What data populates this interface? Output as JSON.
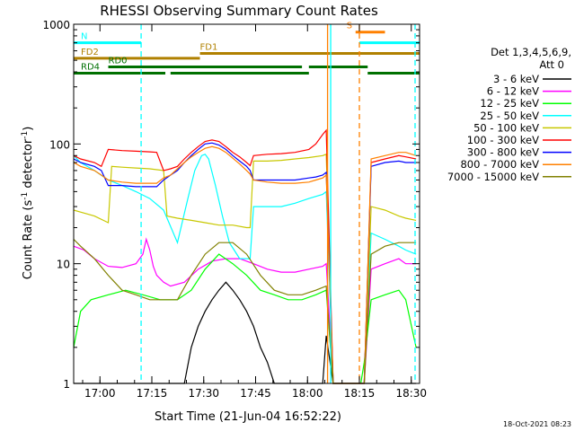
{
  "chart_data": {
    "type": "line",
    "title": "RHESSI Observing Summary Count Rates",
    "xlabel": "Start Time (21-Jun-04 16:52:22)",
    "ylabel_main": "Count Rate (s",
    "ylabel_sup1": "-1",
    "ylabel_mid": " detector",
    "ylabel_sup2": "-1",
    "ylabel_end": ")",
    "x_unit": "minutes since 16:52:22",
    "xlim": [
      0,
      100
    ],
    "ylim": [
      1,
      1000
    ],
    "yscale": "log",
    "x_ticks": [
      {
        "label": "17:00",
        "value": 7.6
      },
      {
        "label": "17:15",
        "value": 22.6
      },
      {
        "label": "17:30",
        "value": 37.6
      },
      {
        "label": "17:45",
        "value": 52.6
      },
      {
        "label": "18:00",
        "value": 67.6
      },
      {
        "label": "18:15",
        "value": 82.6
      },
      {
        "label": "18:30",
        "value": 97.6
      }
    ],
    "y_ticks": [
      {
        "label": "1",
        "value": 1
      },
      {
        "label": "10",
        "value": 10
      },
      {
        "label": "100",
        "value": 100
      },
      {
        "label": "1000",
        "value": 1000
      }
    ],
    "legend": {
      "header1": "Det 1,3,4,5,6,9,",
      "header2": "Att 0",
      "placement": "right"
    },
    "series": [
      {
        "name": "3 - 6 keV",
        "color": "#000000",
        "x": [
          0,
          20,
          25,
          32,
          34,
          36,
          38,
          40,
          42,
          44,
          46,
          48,
          50,
          52,
          54,
          56,
          58,
          60,
          62,
          64,
          66,
          68,
          70,
          72,
          73,
          75,
          79,
          83,
          85,
          87,
          90,
          93,
          96,
          99
        ],
        "y": [
          1,
          1,
          1,
          1,
          2,
          3,
          4,
          5,
          6,
          7,
          6,
          5,
          4,
          3,
          2,
          1.5,
          1,
          1,
          1,
          1,
          1,
          1,
          1,
          1,
          2.5,
          1,
          1,
          1,
          1,
          1,
          1,
          1,
          1,
          1
        ]
      },
      {
        "name": "6 - 12 keV",
        "color": "#ff00ff",
        "x": [
          0,
          3,
          6,
          10,
          14,
          18,
          20,
          21,
          22,
          23,
          24,
          26,
          28,
          32,
          36,
          40,
          44,
          48,
          52,
          56,
          60,
          64,
          68,
          72,
          73,
          75,
          79,
          83,
          84,
          86,
          90,
          94,
          96,
          99
        ],
        "y": [
          14,
          13,
          11,
          9.5,
          9.3,
          10,
          12,
          16,
          13,
          9.5,
          8,
          7,
          6.5,
          7,
          9,
          10.5,
          11,
          11,
          10,
          9,
          8.5,
          8.5,
          9,
          9.5,
          10,
          1,
          1,
          1,
          1,
          9,
          10,
          11,
          10,
          10
        ]
      },
      {
        "name": "12 - 25 keV",
        "color": "#00ff00",
        "x": [
          0,
          2,
          5,
          10,
          15,
          20,
          25,
          30,
          34,
          38,
          42,
          46,
          50,
          54,
          58,
          62,
          66,
          70,
          73,
          75,
          79,
          83,
          84,
          86,
          90,
          94,
          96,
          99
        ],
        "y": [
          2,
          4,
          5,
          5.5,
          6,
          5.5,
          5,
          5,
          6,
          9,
          12,
          10,
          8,
          6,
          5.5,
          5,
          5,
          5.5,
          6,
          1,
          1,
          1,
          1.5,
          5,
          5.5,
          6,
          5,
          2
        ]
      },
      {
        "name": "25 - 50 keV",
        "color": "#00ffff",
        "x": [
          0,
          2,
          6,
          10,
          14,
          18,
          22,
          26,
          30,
          33,
          35,
          37,
          38,
          39,
          41,
          43,
          45,
          48,
          51,
          52,
          56,
          60,
          64,
          68,
          72,
          73,
          75,
          79,
          83,
          84,
          86,
          90,
          94,
          96,
          99
        ],
        "y": [
          80,
          70,
          60,
          50,
          45,
          40,
          35,
          28,
          15,
          35,
          60,
          80,
          82,
          75,
          45,
          25,
          15,
          11,
          11,
          30,
          30,
          30,
          32,
          35,
          38,
          40,
          1,
          1,
          1,
          1,
          18,
          16,
          14,
          13,
          12
        ]
      },
      {
        "name": "50 - 100 keV",
        "color": "#c8c800",
        "x": [
          0,
          2,
          6,
          10,
          11,
          14,
          18,
          22,
          26,
          27,
          30,
          34,
          38,
          42,
          46,
          50,
          51,
          52,
          56,
          60,
          64,
          68,
          72,
          73,
          75,
          79,
          83,
          84,
          86,
          90,
          94,
          96,
          99
        ],
        "y": [
          28,
          27,
          25,
          22,
          65,
          64,
          63,
          62,
          60,
          25,
          24,
          23,
          22,
          21,
          21,
          20,
          20,
          72,
          72,
          73,
          75,
          77,
          80,
          82,
          1,
          1,
          1,
          1,
          30,
          28,
          25,
          24,
          23
        ]
      },
      {
        "name": "100 - 300 keV",
        "color": "#ff0000",
        "x": [
          0,
          2,
          6,
          8,
          10,
          14,
          18,
          22,
          24,
          26,
          28,
          30,
          32,
          34,
          36,
          38,
          40,
          42,
          44,
          46,
          48,
          50,
          51,
          52,
          56,
          60,
          64,
          68,
          70,
          72,
          73,
          75,
          79,
          83,
          84,
          86,
          90,
          94,
          96,
          99
        ],
        "y": [
          80,
          75,
          70,
          65,
          90,
          88,
          87,
          86,
          85,
          60,
          62,
          65,
          75,
          85,
          95,
          105,
          108,
          105,
          95,
          85,
          78,
          70,
          66,
          80,
          82,
          83,
          85,
          90,
          100,
          120,
          130,
          1,
          1,
          1,
          1,
          70,
          75,
          80,
          78,
          75
        ]
      },
      {
        "name": "300 - 800 keV",
        "color": "#0000ff",
        "x": [
          0,
          2,
          6,
          8,
          10,
          14,
          18,
          22,
          24,
          26,
          28,
          30,
          32,
          34,
          36,
          38,
          40,
          42,
          44,
          46,
          48,
          50,
          51,
          52,
          56,
          60,
          64,
          68,
          70,
          72,
          73,
          75,
          79,
          83,
          84,
          86,
          90,
          94,
          96,
          99
        ],
        "y": [
          75,
          70,
          65,
          60,
          45,
          45,
          44,
          44,
          44,
          50,
          55,
          60,
          70,
          80,
          90,
          100,
          102,
          98,
          90,
          80,
          72,
          65,
          60,
          50,
          50,
          50,
          50,
          52,
          53,
          55,
          58,
          1,
          1,
          1,
          1,
          65,
          70,
          72,
          70,
          70
        ]
      },
      {
        "name": "800 - 7000 keV",
        "color": "#ff8000",
        "x": [
          0,
          2,
          6,
          8,
          10,
          14,
          18,
          22,
          24,
          26,
          28,
          30,
          32,
          34,
          36,
          38,
          40,
          42,
          44,
          46,
          48,
          50,
          51,
          52,
          56,
          60,
          64,
          68,
          70,
          72,
          73,
          75,
          79,
          83,
          84,
          86,
          90,
          94,
          96,
          99
        ],
        "y": [
          70,
          65,
          60,
          55,
          50,
          48,
          47,
          47,
          47,
          52,
          55,
          62,
          70,
          78,
          85,
          92,
          95,
          92,
          85,
          76,
          68,
          60,
          56,
          50,
          48,
          47,
          47,
          48,
          50,
          52,
          55,
          1,
          1,
          1,
          1,
          75,
          80,
          85,
          85,
          80
        ]
      },
      {
        "name": "7000 - 15000 keV",
        "color": "#808000",
        "x": [
          0,
          2,
          6,
          10,
          14,
          18,
          22,
          26,
          30,
          34,
          38,
          42,
          46,
          50,
          54,
          58,
          62,
          66,
          70,
          73,
          75,
          79,
          83,
          84,
          86,
          90,
          94,
          96,
          99
        ],
        "y": [
          16,
          14,
          11,
          8,
          6,
          5.5,
          5,
          5,
          5,
          8,
          12,
          15,
          15,
          12,
          8,
          6,
          5.5,
          5.5,
          6,
          6.5,
          1,
          1,
          1,
          1,
          12,
          14,
          15,
          15,
          15
        ]
      }
    ],
    "flag_bars": [
      {
        "label": "N",
        "color": "#00ffff",
        "level": 700,
        "segments": [
          [
            0,
            19.5
          ],
          [
            82.6,
            100
          ]
        ]
      },
      {
        "label": "S",
        "color": "#ff8000",
        "level": 860,
        "segments": [
          [
            81.5,
            90
          ]
        ]
      },
      {
        "label": "FD1",
        "color": "#b08000",
        "level": 570,
        "segments": [
          [
            36.5,
            100
          ]
        ]
      },
      {
        "label": "FD2",
        "color": "#b08000",
        "level": 520,
        "segments": [
          [
            0,
            36.5
          ]
        ]
      },
      {
        "label": "RD0",
        "color": "#007000",
        "level": 440,
        "segments": [
          [
            10,
            66
          ],
          [
            68,
            85
          ]
        ]
      },
      {
        "label": "RD4",
        "color": "#007000",
        "level": 390,
        "segments": [
          [
            0,
            26.5
          ],
          [
            28,
            68
          ],
          [
            85,
            100
          ]
        ]
      }
    ],
    "vertical_lines": [
      {
        "x": 19.5,
        "color": "#00ffff",
        "style": "dashed"
      },
      {
        "x": 73.4,
        "color": "#ff8000",
        "style": "solid"
      },
      {
        "x": 74.3,
        "color": "#00ffff",
        "style": "solid"
      },
      {
        "x": 82.6,
        "color": "#ff8000",
        "style": "dashed"
      },
      {
        "x": 98.7,
        "color": "#00ffff",
        "style": "dashed"
      }
    ],
    "timestamp": "18-Oct-2021 08:23"
  }
}
